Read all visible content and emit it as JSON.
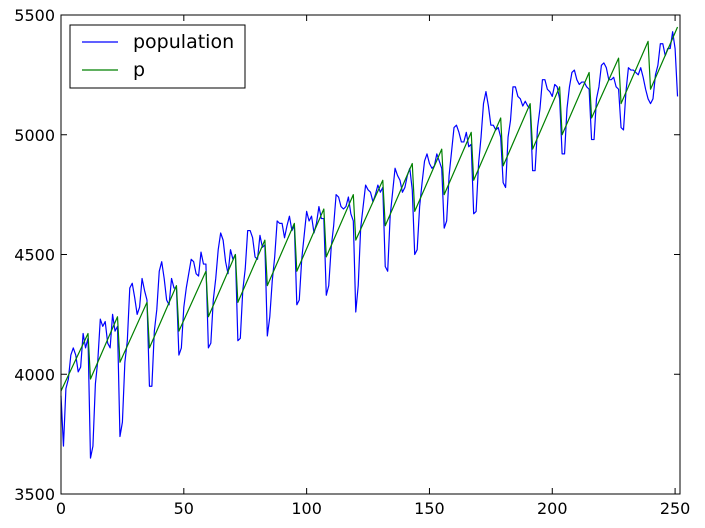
{
  "chart_data": {
    "type": "line",
    "title": "",
    "xlabel": "",
    "ylabel": "",
    "xlim": [
      0,
      252
    ],
    "ylim": [
      3500,
      5500
    ],
    "grid": false,
    "legend_placement": "top-left",
    "x_ticks": [
      0,
      50,
      100,
      150,
      200,
      250
    ],
    "y_ticks": [
      3500,
      4000,
      4500,
      5000,
      5500
    ],
    "x_tick_labels": [
      "0",
      "50",
      "100",
      "150",
      "200",
      "250"
    ],
    "y_tick_labels": [
      "3500",
      "4000",
      "4500",
      "5000",
      "5500"
    ],
    "series": [
      {
        "name": "population",
        "color": "#0000ff",
        "x": [
          0,
          1,
          2,
          3,
          4,
          5,
          6,
          7,
          8,
          9,
          10,
          11,
          12,
          13,
          14,
          15,
          16,
          17,
          18,
          19,
          20,
          21,
          22,
          23,
          24,
          25,
          26,
          27,
          28,
          29,
          30,
          31,
          32,
          33,
          34,
          35,
          36,
          37,
          38,
          39,
          40,
          41,
          42,
          43,
          44,
          45,
          46,
          47,
          48,
          49,
          50,
          51,
          52,
          53,
          54,
          55,
          56,
          57,
          58,
          59,
          60,
          61,
          62,
          63,
          64,
          65,
          66,
          67,
          68,
          69,
          70,
          71,
          72,
          73,
          74,
          75,
          76,
          77,
          78,
          79,
          80,
          81,
          82,
          83,
          84,
          85,
          86,
          87,
          88,
          89,
          90,
          91,
          92,
          93,
          94,
          95,
          96,
          97,
          98,
          99,
          100,
          101,
          102,
          103,
          104,
          105,
          106,
          107,
          108,
          109,
          110,
          111,
          112,
          113,
          114,
          115,
          116,
          117,
          118,
          119,
          120,
          121,
          122,
          123,
          124,
          125,
          126,
          127,
          128,
          129,
          130,
          131,
          132,
          133,
          134,
          135,
          136,
          137,
          138,
          139,
          140,
          141,
          142,
          143,
          144,
          145,
          146,
          147,
          148,
          149,
          150,
          151,
          152,
          153,
          154,
          155,
          156,
          157,
          158,
          159,
          160,
          161,
          162,
          163,
          164,
          165,
          166,
          167,
          168,
          169,
          170,
          171,
          172,
          173,
          174,
          175,
          176,
          177,
          178,
          179,
          180,
          181,
          182,
          183,
          184,
          185,
          186,
          187,
          188,
          189,
          190,
          191,
          192,
          193,
          194,
          195,
          196,
          197,
          198,
          199,
          200,
          201,
          202,
          203,
          204,
          205,
          206,
          207,
          208,
          209,
          210,
          211,
          212,
          213,
          214,
          215,
          216,
          217,
          218,
          219,
          220,
          221,
          222,
          223,
          224,
          225,
          226,
          227,
          228,
          229,
          230,
          231,
          232,
          233,
          234,
          235,
          236,
          237,
          238,
          239,
          240,
          241,
          242,
          243,
          244,
          245,
          246,
          247,
          248,
          249,
          250,
          251
        ],
        "values": [
          3910,
          3700,
          3940,
          3980,
          4080,
          4110,
          4080,
          4010,
          4030,
          4170,
          4110,
          4150,
          3650,
          3700,
          3960,
          4060,
          4230,
          4200,
          4220,
          4130,
          4110,
          4250,
          4180,
          4200,
          3740,
          3800,
          4050,
          4140,
          4360,
          4380,
          4320,
          4250,
          4280,
          4400,
          4350,
          4310,
          3950,
          3950,
          4180,
          4270,
          4430,
          4470,
          4400,
          4310,
          4290,
          4400,
          4360,
          4360,
          4080,
          4110,
          4280,
          4360,
          4420,
          4480,
          4470,
          4420,
          4410,
          4510,
          4460,
          4460,
          4110,
          4130,
          4310,
          4400,
          4520,
          4590,
          4560,
          4470,
          4420,
          4520,
          4480,
          4500,
          4140,
          4150,
          4350,
          4440,
          4600,
          4600,
          4570,
          4490,
          4480,
          4580,
          4530,
          4540,
          4160,
          4240,
          4390,
          4490,
          4640,
          4630,
          4630,
          4570,
          4620,
          4660,
          4600,
          4620,
          4290,
          4310,
          4480,
          4580,
          4680,
          4640,
          4660,
          4590,
          4630,
          4700,
          4650,
          4650,
          4330,
          4370,
          4530,
          4620,
          4750,
          4740,
          4700,
          4690,
          4700,
          4740,
          4670,
          4640,
          4260,
          4370,
          4610,
          4700,
          4790,
          4770,
          4760,
          4720,
          4750,
          4790,
          4760,
          4780,
          4450,
          4430,
          4660,
          4760,
          4860,
          4830,
          4810,
          4760,
          4780,
          4830,
          4860,
          4770,
          4500,
          4520,
          4700,
          4800,
          4890,
          4920,
          4880,
          4860,
          4870,
          4920,
          4890,
          4860,
          4610,
          4640,
          4830,
          4930,
          5030,
          5040,
          5010,
          4970,
          4970,
          5010,
          4950,
          4960,
          4670,
          4680,
          4880,
          4990,
          5130,
          5180,
          5120,
          5040,
          5040,
          5020,
          5030,
          4990,
          4800,
          4780,
          4990,
          5060,
          5200,
          5200,
          5160,
          5150,
          5120,
          5140,
          5120,
          5110,
          4850,
          4850,
          5030,
          5110,
          5230,
          5230,
          5190,
          5180,
          5160,
          5210,
          5200,
          5150,
          4920,
          4920,
          5110,
          5200,
          5260,
          5270,
          5230,
          5210,
          5220,
          5220,
          5200,
          5190,
          4980,
          4980,
          5150,
          5200,
          5290,
          5300,
          5280,
          5230,
          5230,
          5240,
          5200,
          5190,
          5030,
          5020,
          5180,
          5280,
          5270,
          5270,
          5260,
          5250,
          5280,
          5240,
          5190,
          5150,
          5130,
          5150,
          5250,
          5290,
          5380,
          5380,
          5330,
          5360,
          5360,
          5430,
          5360,
          5160
        ]
      },
      {
        "name": "p",
        "color": "#008000",
        "x": [
          0,
          11,
          12,
          23,
          24,
          35,
          36,
          47,
          48,
          59,
          60,
          71,
          72,
          83,
          84,
          95,
          96,
          107,
          108,
          119,
          120,
          131,
          132,
          143,
          144,
          155,
          156,
          167,
          168,
          179,
          180,
          191,
          192,
          203,
          204,
          215,
          216,
          227,
          228,
          239,
          240,
          251
        ],
        "values": [
          3930,
          4170,
          3980,
          4240,
          4050,
          4300,
          4110,
          4370,
          4180,
          4430,
          4240,
          4500,
          4300,
          4560,
          4370,
          4630,
          4430,
          4690,
          4490,
          4750,
          4560,
          4810,
          4620,
          4880,
          4680,
          4940,
          4750,
          5010,
          4810,
          5070,
          4870,
          5130,
          4940,
          5200,
          5000,
          5260,
          5070,
          5320,
          5130,
          5390,
          5190,
          5450
        ]
      }
    ]
  }
}
